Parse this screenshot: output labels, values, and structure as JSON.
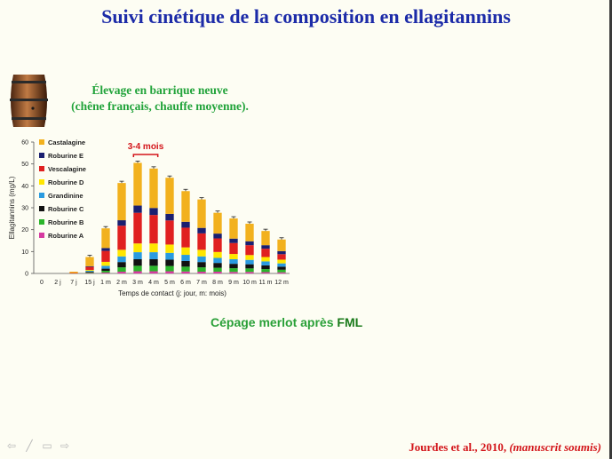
{
  "title": "Suivi cinétique de la composition en ellagitannins",
  "elevage": {
    "line1": "Élevage en barrique neuve",
    "line2": "(chêne français, chauffe moyenne)."
  },
  "annotation": "3-4 mois",
  "cepage": {
    "prefix": "Cépage merlot après ",
    "suffix": "FML"
  },
  "reference": {
    "main": "Jourdes et al., 2010, ",
    "italic": "(manuscrit soumis)"
  },
  "chart_data": {
    "type": "bar",
    "stacked": true,
    "ylabel": "Ellagitannins (mg/L)",
    "xlabel": "Temps de contact (j: jour, m: mois)",
    "ylim": [
      0,
      60
    ],
    "yticks": [
      0,
      10,
      20,
      30,
      40,
      50,
      60
    ],
    "categories": [
      "0",
      "2 j",
      "7 j",
      "15 j",
      "1 m",
      "2 m",
      "3 m",
      "4 m",
      "5 m",
      "6 m",
      "7 m",
      "8 m",
      "9 m",
      "10 m",
      "11 m",
      "12 m"
    ],
    "legend_position": "top-left",
    "series": [
      {
        "name": "Roburine A",
        "color": "#d63aa0",
        "values": [
          0,
          0,
          0,
          0.2,
          0.4,
          0.8,
          1.0,
          1.0,
          1.0,
          0.9,
          0.8,
          0.8,
          0.7,
          0.7,
          0.6,
          0.5
        ]
      },
      {
        "name": "Roburine B",
        "color": "#2bb52b",
        "values": [
          0,
          0,
          0,
          0.3,
          0.8,
          2.0,
          2.5,
          2.5,
          2.4,
          2.2,
          2.0,
          1.8,
          1.7,
          1.6,
          1.4,
          1.2
        ]
      },
      {
        "name": "Roburine C",
        "color": "#111111",
        "values": [
          0,
          0,
          0,
          0.3,
          1.0,
          2.4,
          3.0,
          3.0,
          2.9,
          2.6,
          2.4,
          2.2,
          2.0,
          1.9,
          1.7,
          1.4
        ]
      },
      {
        "name": "Grandinine",
        "color": "#2a9be0",
        "values": [
          0,
          0,
          0,
          0.4,
          1.3,
          2.6,
          3.2,
          3.2,
          3.1,
          2.8,
          2.6,
          2.3,
          2.1,
          2.0,
          1.8,
          1.5
        ]
      },
      {
        "name": "Roburine D",
        "color": "#ffe600",
        "values": [
          0,
          0,
          0,
          0.4,
          1.8,
          3.0,
          4.0,
          4.0,
          3.8,
          3.4,
          3.0,
          2.7,
          2.4,
          2.2,
          2.0,
          1.7
        ]
      },
      {
        "name": "Vescalagine",
        "color": "#e02020",
        "values": [
          0,
          0,
          0.2,
          1.4,
          5.0,
          11.0,
          14.0,
          13.0,
          11.0,
          9.0,
          7.5,
          6.2,
          5.0,
          4.5,
          3.8,
          2.5
        ]
      },
      {
        "name": "Roburine E",
        "color": "#1a1f70",
        "values": [
          0,
          0,
          0,
          0.3,
          1.3,
          2.5,
          3.3,
          3.2,
          3.0,
          2.7,
          2.5,
          2.2,
          2.0,
          1.8,
          1.6,
          1.4
        ]
      },
      {
        "name": "Castalagine",
        "color": "#f2b11e",
        "values": [
          0,
          0,
          0.6,
          4.2,
          9.0,
          17.0,
          19.5,
          18.0,
          16.5,
          14.0,
          13.0,
          9.5,
          9.2,
          8.0,
          6.5,
          5.3
        ]
      }
    ]
  }
}
